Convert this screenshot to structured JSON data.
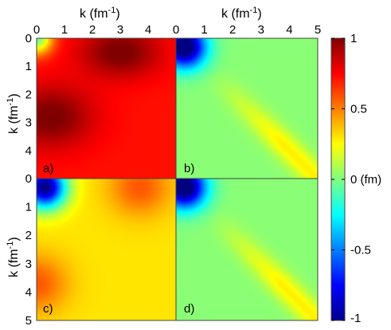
{
  "chart_data": {
    "type": "heatmap",
    "layout": "2x2 grid",
    "x_axis_label": "k (fm",
    "x_axis_label_sup": "-1",
    "x_axis_label_end": ")",
    "y_axis_label": "k (fm",
    "y_axis_label_sup": "-1",
    "y_axis_label_end": ")",
    "xlim": [
      0,
      5
    ],
    "ylim": [
      0,
      5
    ],
    "y_inverted": true,
    "x_ticks": [
      "0",
      "1",
      "2",
      "3",
      "4",
      "5"
    ],
    "y_ticks": [
      "0",
      "1",
      "2",
      "3",
      "4",
      "5"
    ],
    "clim": [
      -1,
      1
    ],
    "colormap": "jet",
    "colorbar": {
      "ticks": [
        {
          "value": 1,
          "label": "1"
        },
        {
          "value": 0.5,
          "label": "0.5"
        },
        {
          "value": 0,
          "label": "0 (fm)"
        },
        {
          "value": -0.5,
          "label": "-0.5"
        },
        {
          "value": -1,
          "label": "-1"
        }
      ]
    },
    "panels": [
      {
        "label": "a)",
        "description_key": "positive broad",
        "blobs": [
          {
            "cx": 0.0,
            "cy": 0.0,
            "sx": 0.55,
            "sy": 0.55,
            "a": -0.75
          },
          {
            "cx": 0.5,
            "cy": 2.8,
            "sx": 1.5,
            "sy": 1.1,
            "a": 0.3
          },
          {
            "cx": 3.0,
            "cy": 0.5,
            "sx": 1.4,
            "sy": 0.9,
            "a": 0.3
          }
        ],
        "base": 0.72,
        "ridge": 0.0,
        "ridge_w": 0.5
      },
      {
        "label": "b)",
        "blobs": [
          {
            "cx": 0.3,
            "cy": 0.3,
            "sx": 0.75,
            "sy": 0.75,
            "a": -1.15
          }
        ],
        "base": 0.02,
        "ridge": 0.26,
        "ridge_w": 0.45
      },
      {
        "label": "c)",
        "blobs": [
          {
            "cx": 0.3,
            "cy": 0.3,
            "sx": 0.75,
            "sy": 0.75,
            "a": -1.3
          },
          {
            "cx": 3.7,
            "cy": 0.3,
            "sx": 1.1,
            "sy": 1.0,
            "a": 0.28
          },
          {
            "cx": 0.0,
            "cy": 3.7,
            "sx": 1.1,
            "sy": 1.0,
            "a": 0.28
          }
        ],
        "base": 0.3,
        "ridge": 0.0,
        "ridge_w": 0.5
      },
      {
        "label": "d)",
        "blobs": [
          {
            "cx": 0.3,
            "cy": 0.3,
            "sx": 0.75,
            "sy": 0.75,
            "a": -1.15
          }
        ],
        "base": 0.02,
        "ridge": 0.26,
        "ridge_w": 0.45
      }
    ]
  }
}
